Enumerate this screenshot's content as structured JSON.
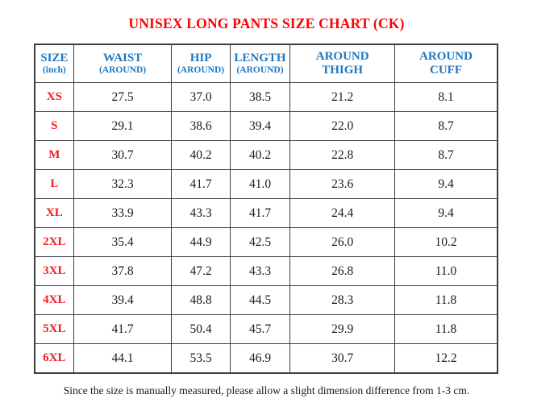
{
  "title": "UNISEX LONG PANTS SIZE CHART (CK)",
  "colors": {
    "title_red": "#ff0000",
    "size_red": "#f01e24",
    "header_blue": "#1f78c1",
    "border": "#3d3d3d",
    "value_text": "#1a1a1a"
  },
  "table": {
    "columns": [
      {
        "label": "SIZE",
        "sub": "(inch)"
      },
      {
        "label": "WAIST",
        "sub": "(AROUND)"
      },
      {
        "label": "HIP",
        "sub": "(AROUND)"
      },
      {
        "label": "LENGTH",
        "sub": "(AROUND)"
      },
      {
        "label": "AROUND",
        "sub": "THIGH"
      },
      {
        "label": "AROUND",
        "sub": "CUFF"
      }
    ],
    "rows": [
      {
        "size": "XS",
        "values": [
          "27.5",
          "37.0",
          "38.5",
          "21.2",
          "8.1"
        ]
      },
      {
        "size": "S",
        "values": [
          "29.1",
          "38.6",
          "39.4",
          "22.0",
          "8.7"
        ]
      },
      {
        "size": "M",
        "values": [
          "30.7",
          "40.2",
          "40.2",
          "22.8",
          "8.7"
        ]
      },
      {
        "size": "L",
        "values": [
          "32.3",
          "41.7",
          "41.0",
          "23.6",
          "9.4"
        ]
      },
      {
        "size": "XL",
        "values": [
          "33.9",
          "43.3",
          "41.7",
          "24.4",
          "9.4"
        ]
      },
      {
        "size": "2XL",
        "values": [
          "35.4",
          "44.9",
          "42.5",
          "26.0",
          "10.2"
        ]
      },
      {
        "size": "3XL",
        "values": [
          "37.8",
          "47.2",
          "43.3",
          "26.8",
          "11.0"
        ]
      },
      {
        "size": "4XL",
        "values": [
          "39.4",
          "48.8",
          "44.5",
          "28.3",
          "11.8"
        ]
      },
      {
        "size": "5XL",
        "values": [
          "41.7",
          "50.4",
          "45.7",
          "29.9",
          "11.8"
        ]
      },
      {
        "size": "6XL",
        "values": [
          "44.1",
          "53.5",
          "46.9",
          "30.7",
          "12.2"
        ]
      }
    ]
  },
  "footnote": "Since the size is manually measured, please allow a slight dimension difference from 1-3 cm."
}
